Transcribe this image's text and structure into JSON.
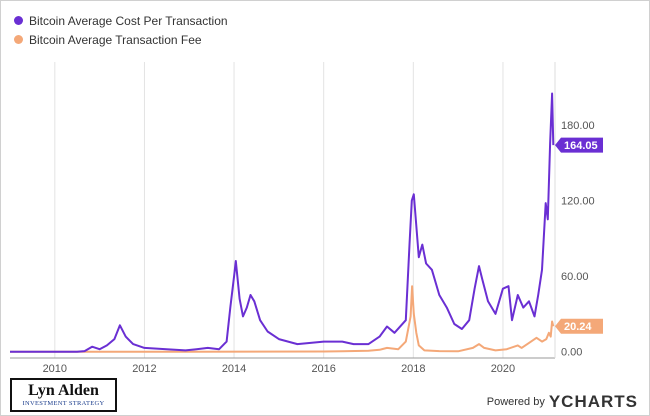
{
  "chart_data": {
    "type": "line",
    "series": [
      {
        "name": "Bitcoin Average Cost Per Transaction",
        "color": "#6a2fd3",
        "last_value_label": "164.05",
        "points": [
          [
            "2009-01-01",
            0
          ],
          [
            "2009-07-01",
            0
          ],
          [
            "2010-01-01",
            0
          ],
          [
            "2010-07-01",
            0
          ],
          [
            "2010-09-01",
            0.5
          ],
          [
            "2010-11-01",
            4
          ],
          [
            "2011-01-01",
            2
          ],
          [
            "2011-03-01",
            5
          ],
          [
            "2011-05-01",
            10
          ],
          [
            "2011-06-15",
            21
          ],
          [
            "2011-08-01",
            12
          ],
          [
            "2011-10-01",
            6
          ],
          [
            "2012-01-01",
            3
          ],
          [
            "2012-07-01",
            2
          ],
          [
            "2012-12-01",
            1
          ],
          [
            "2013-03-01",
            2
          ],
          [
            "2013-06-01",
            3
          ],
          [
            "2013-09-01",
            2
          ],
          [
            "2013-11-01",
            8
          ],
          [
            "2013-12-01",
            35
          ],
          [
            "2014-01-01",
            60
          ],
          [
            "2014-01-15",
            72
          ],
          [
            "2014-02-15",
            42
          ],
          [
            "2014-03-15",
            28
          ],
          [
            "2014-04-15",
            35
          ],
          [
            "2014-05-15",
            45
          ],
          [
            "2014-06-15",
            40
          ],
          [
            "2014-08-01",
            25
          ],
          [
            "2014-10-01",
            16
          ],
          [
            "2015-01-01",
            10
          ],
          [
            "2015-06-01",
            6
          ],
          [
            "2016-01-01",
            8
          ],
          [
            "2016-06-01",
            8
          ],
          [
            "2016-09-01",
            6
          ],
          [
            "2017-01-01",
            6
          ],
          [
            "2017-04-01",
            12
          ],
          [
            "2017-06-01",
            20
          ],
          [
            "2017-08-01",
            15
          ],
          [
            "2017-11-01",
            25
          ],
          [
            "2017-12-01",
            85
          ],
          [
            "2017-12-20",
            120
          ],
          [
            "2018-01-05",
            125
          ],
          [
            "2018-01-25",
            100
          ],
          [
            "2018-02-15",
            75
          ],
          [
            "2018-03-15",
            85
          ],
          [
            "2018-04-15",
            70
          ],
          [
            "2018-06-01",
            65
          ],
          [
            "2018-08-01",
            45
          ],
          [
            "2018-10-01",
            35
          ],
          [
            "2018-12-01",
            22
          ],
          [
            "2019-02-01",
            18
          ],
          [
            "2019-04-01",
            25
          ],
          [
            "2019-05-15",
            50
          ],
          [
            "2019-06-20",
            68
          ],
          [
            "2019-07-15",
            58
          ],
          [
            "2019-09-01",
            40
          ],
          [
            "2019-11-01",
            30
          ],
          [
            "2020-01-01",
            50
          ],
          [
            "2020-02-15",
            52
          ],
          [
            "2020-03-15",
            25
          ],
          [
            "2020-05-01",
            45
          ],
          [
            "2020-06-15",
            35
          ],
          [
            "2020-08-01",
            40
          ],
          [
            "2020-09-15",
            28
          ],
          [
            "2020-10-15",
            45
          ],
          [
            "2020-11-15",
            65
          ],
          [
            "2020-12-15",
            118
          ],
          [
            "2021-01-01",
            105
          ],
          [
            "2021-01-20",
            165
          ],
          [
            "2021-02-05",
            205
          ],
          [
            "2021-02-15",
            164.05
          ]
        ]
      },
      {
        "name": "Bitcoin Average Transaction Fee",
        "color": "#f4a878",
        "last_value_label": "20.24",
        "points": [
          [
            "2009-01-01",
            0
          ],
          [
            "2013-01-01",
            0
          ],
          [
            "2016-01-01",
            0.2
          ],
          [
            "2016-06-01",
            0.4
          ],
          [
            "2017-01-01",
            0.8
          ],
          [
            "2017-04-01",
            1.5
          ],
          [
            "2017-06-01",
            3
          ],
          [
            "2017-09-01",
            2
          ],
          [
            "2017-11-01",
            8
          ],
          [
            "2017-12-10",
            28
          ],
          [
            "2017-12-22",
            52
          ],
          [
            "2018-01-05",
            30
          ],
          [
            "2018-01-25",
            15
          ],
          [
            "2018-02-15",
            5
          ],
          [
            "2018-04-01",
            1
          ],
          [
            "2018-08-01",
            0.5
          ],
          [
            "2019-01-01",
            0.3
          ],
          [
            "2019-05-01",
            3
          ],
          [
            "2019-06-20",
            6
          ],
          [
            "2019-08-01",
            3
          ],
          [
            "2019-11-01",
            1
          ],
          [
            "2020-02-01",
            2
          ],
          [
            "2020-05-01",
            5
          ],
          [
            "2020-06-01",
            3
          ],
          [
            "2020-08-01",
            7
          ],
          [
            "2020-10-01",
            11
          ],
          [
            "2020-11-15",
            8
          ],
          [
            "2020-12-20",
            10
          ],
          [
            "2021-01-10",
            15
          ],
          [
            "2021-01-25",
            12
          ],
          [
            "2021-02-05",
            24
          ],
          [
            "2021-02-15",
            20.24
          ]
        ]
      }
    ],
    "x_ticks": [
      "2010",
      "2012",
      "2014",
      "2016",
      "2018",
      "2020"
    ],
    "y_ticks": [
      "0.00",
      "60.00",
      "120.00",
      "180.00"
    ],
    "xlim": [
      "2009-01-01",
      "2021-03-01"
    ],
    "ylim": [
      -5,
      230
    ],
    "grid": "vertical"
  },
  "branding": {
    "logo_name": "Lyn Alden",
    "logo_sub": "INVESTMENT STRATEGY",
    "powered_by": "Powered by",
    "brand": "YCHARTS"
  }
}
